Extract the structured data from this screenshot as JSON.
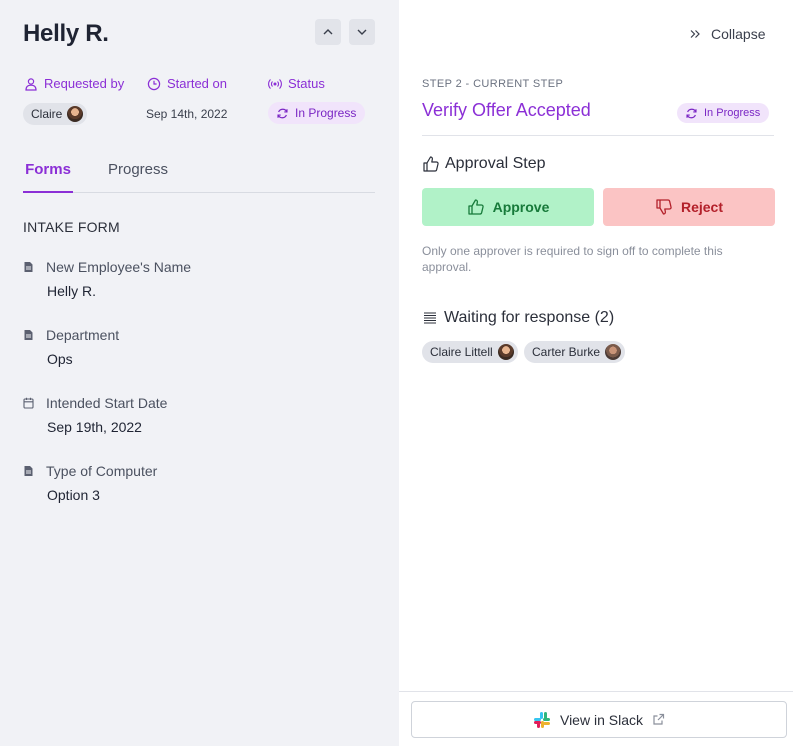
{
  "header": {
    "title": "Helly R."
  },
  "meta": {
    "requested_by_label": "Requested by",
    "requested_by_user": "Claire",
    "started_on_label": "Started on",
    "started_on_value": "Sep 14th, 2022",
    "status_label": "Status",
    "status_value": "In Progress"
  },
  "tabs": [
    {
      "label": "Forms",
      "active": true
    },
    {
      "label": "Progress",
      "active": false
    }
  ],
  "form": {
    "heading": "INTAKE FORM",
    "fields": [
      {
        "label": "New Employee's Name",
        "value": "Helly R.",
        "icon": "document-icon"
      },
      {
        "label": "Department",
        "value": "Ops",
        "icon": "document-icon"
      },
      {
        "label": "Intended Start Date",
        "value": "Sep 19th, 2022",
        "icon": "calendar-icon"
      },
      {
        "label": "Type of Computer",
        "value": "Option 3",
        "icon": "document-icon"
      }
    ]
  },
  "panel": {
    "collapse_label": "Collapse",
    "step_label": "STEP 2 - CURRENT STEP",
    "step_title": "Verify Offer Accepted",
    "status": "In Progress",
    "approval_title": "Approval Step",
    "approve_label": "Approve",
    "reject_label": "Reject",
    "help_text": "Only one approver is required to sign off to complete this approval.",
    "waiting_title": "Waiting for response (2)",
    "waiting_users": [
      "Claire Littell",
      "Carter Burke"
    ],
    "slack_label": "View in Slack"
  },
  "colors": {
    "accent": "#8b2fd6",
    "approve_bg": "#b1f2c8",
    "reject_bg": "#fbc4c4",
    "left_bg": "#f1f2f6"
  }
}
